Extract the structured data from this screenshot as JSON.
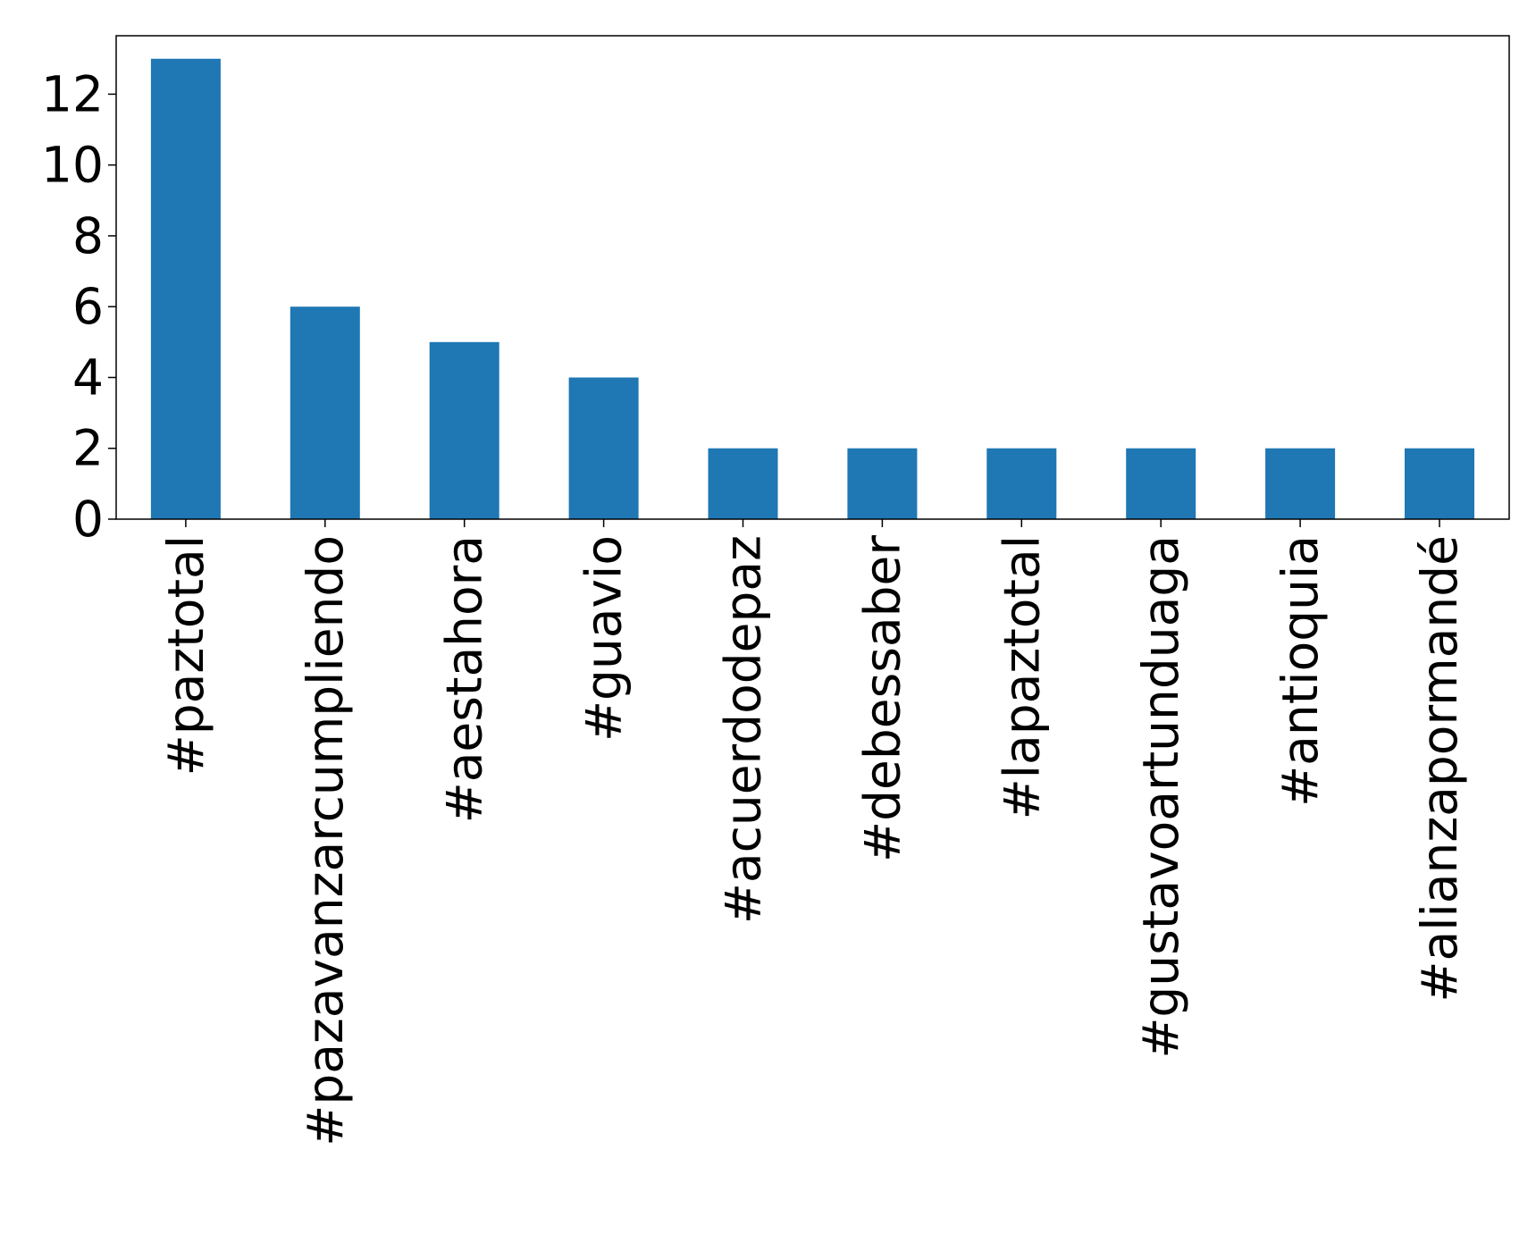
{
  "chart_data": {
    "type": "bar",
    "title": "",
    "xlabel": "",
    "ylabel": "",
    "categories": [
      "#paztotal",
      "#pazavanzarcumpliendo",
      "#aestahora",
      "#guavio",
      "#acuerdodepaz",
      "#debessaber",
      "#lapaztotal",
      "#gustavoartunduaga",
      "#antioquia",
      "#alianzapormandé"
    ],
    "values": [
      13,
      6,
      5,
      4,
      2,
      2,
      2,
      2,
      2,
      2
    ],
    "ylim": [
      0,
      13.65
    ],
    "yticks": [
      0,
      2,
      4,
      6,
      8,
      10,
      12
    ],
    "ytick_labels": [
      "0",
      "2",
      "4",
      "6",
      "8",
      "10",
      "12"
    ],
    "bar_color": "#1f77b4",
    "grid": false,
    "legend": "none"
  }
}
